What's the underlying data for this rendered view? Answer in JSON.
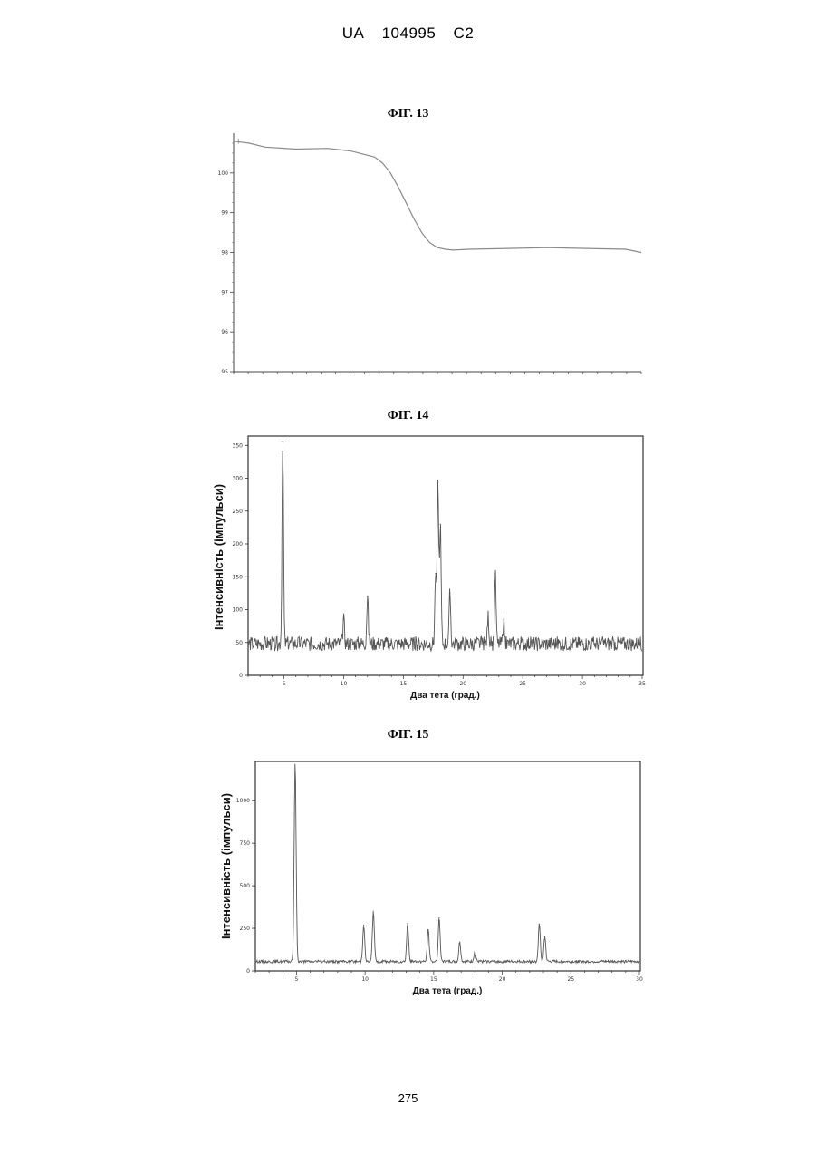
{
  "header": {
    "country": "UA",
    "number": "104995",
    "kind": "C2"
  },
  "page_number": "275",
  "chart_data": [
    {
      "type": "line",
      "figure_label": "ФІГ. 13",
      "title": "",
      "xlabel": "",
      "ylabel": "",
      "ylim": [
        95,
        101
      ],
      "y_ticks": [
        "95",
        "96",
        "97",
        "98",
        "99",
        "100"
      ],
      "series": [
        {
          "x": [
            0,
            2,
            4,
            8,
            12,
            15,
            18,
            19,
            20,
            21,
            22,
            23,
            24,
            25,
            26,
            27,
            28,
            30,
            35,
            40,
            45,
            50,
            52
          ],
          "values": [
            100.8,
            100.75,
            100.65,
            100.6,
            100.62,
            100.55,
            100.4,
            100.25,
            100.0,
            99.65,
            99.25,
            98.85,
            98.5,
            98.25,
            98.12,
            98.08,
            98.06,
            98.08,
            98.1,
            98.12,
            98.1,
            98.08,
            98.0
          ]
        }
      ],
      "color": "#8a8a8a"
    },
    {
      "type": "line",
      "figure_label": "ФІГ. 14",
      "xlabel": "Два тета (град.)",
      "ylabel": "Інтенсивність (імпульси)",
      "xlim": [
        2,
        35
      ],
      "ylim": [
        0,
        360
      ],
      "x_ticks": [
        "5",
        "10",
        "15",
        "20",
        "25",
        "30",
        "35"
      ],
      "y_ticks": [
        "0",
        "50",
        "100",
        "150",
        "200",
        "250",
        "300",
        "350"
      ],
      "baseline": 48,
      "peaks": [
        {
          "x": 4.9,
          "y": 355
        },
        {
          "x": 10.0,
          "y": 85
        },
        {
          "x": 12.0,
          "y": 120
        },
        {
          "x": 17.7,
          "y": 155
        },
        {
          "x": 17.9,
          "y": 295
        },
        {
          "x": 18.1,
          "y": 230
        },
        {
          "x": 18.9,
          "y": 125
        },
        {
          "x": 22.1,
          "y": 90
        },
        {
          "x": 22.7,
          "y": 155
        },
        {
          "x": 23.4,
          "y": 85
        }
      ],
      "color": "#555555"
    },
    {
      "type": "line",
      "figure_label": "ФІГ. 15",
      "xlabel": "Два тета (град.)",
      "ylabel": "Інтенсивність (імпульси)",
      "xlim": [
        2,
        30
      ],
      "ylim": [
        0,
        1230
      ],
      "x_ticks": [
        "5",
        "10",
        "15",
        "20",
        "25",
        "30"
      ],
      "y_ticks": [
        "0",
        "250",
        "500",
        "750",
        "1000"
      ],
      "baseline": 55,
      "peaks": [
        {
          "x": 4.9,
          "y": 1230
        },
        {
          "x": 9.9,
          "y": 270
        },
        {
          "x": 10.6,
          "y": 350
        },
        {
          "x": 13.1,
          "y": 280
        },
        {
          "x": 14.6,
          "y": 240
        },
        {
          "x": 15.4,
          "y": 310
        },
        {
          "x": 16.9,
          "y": 170
        },
        {
          "x": 18.0,
          "y": 110
        },
        {
          "x": 22.7,
          "y": 275
        },
        {
          "x": 23.1,
          "y": 200
        }
      ],
      "color": "#555555"
    }
  ]
}
